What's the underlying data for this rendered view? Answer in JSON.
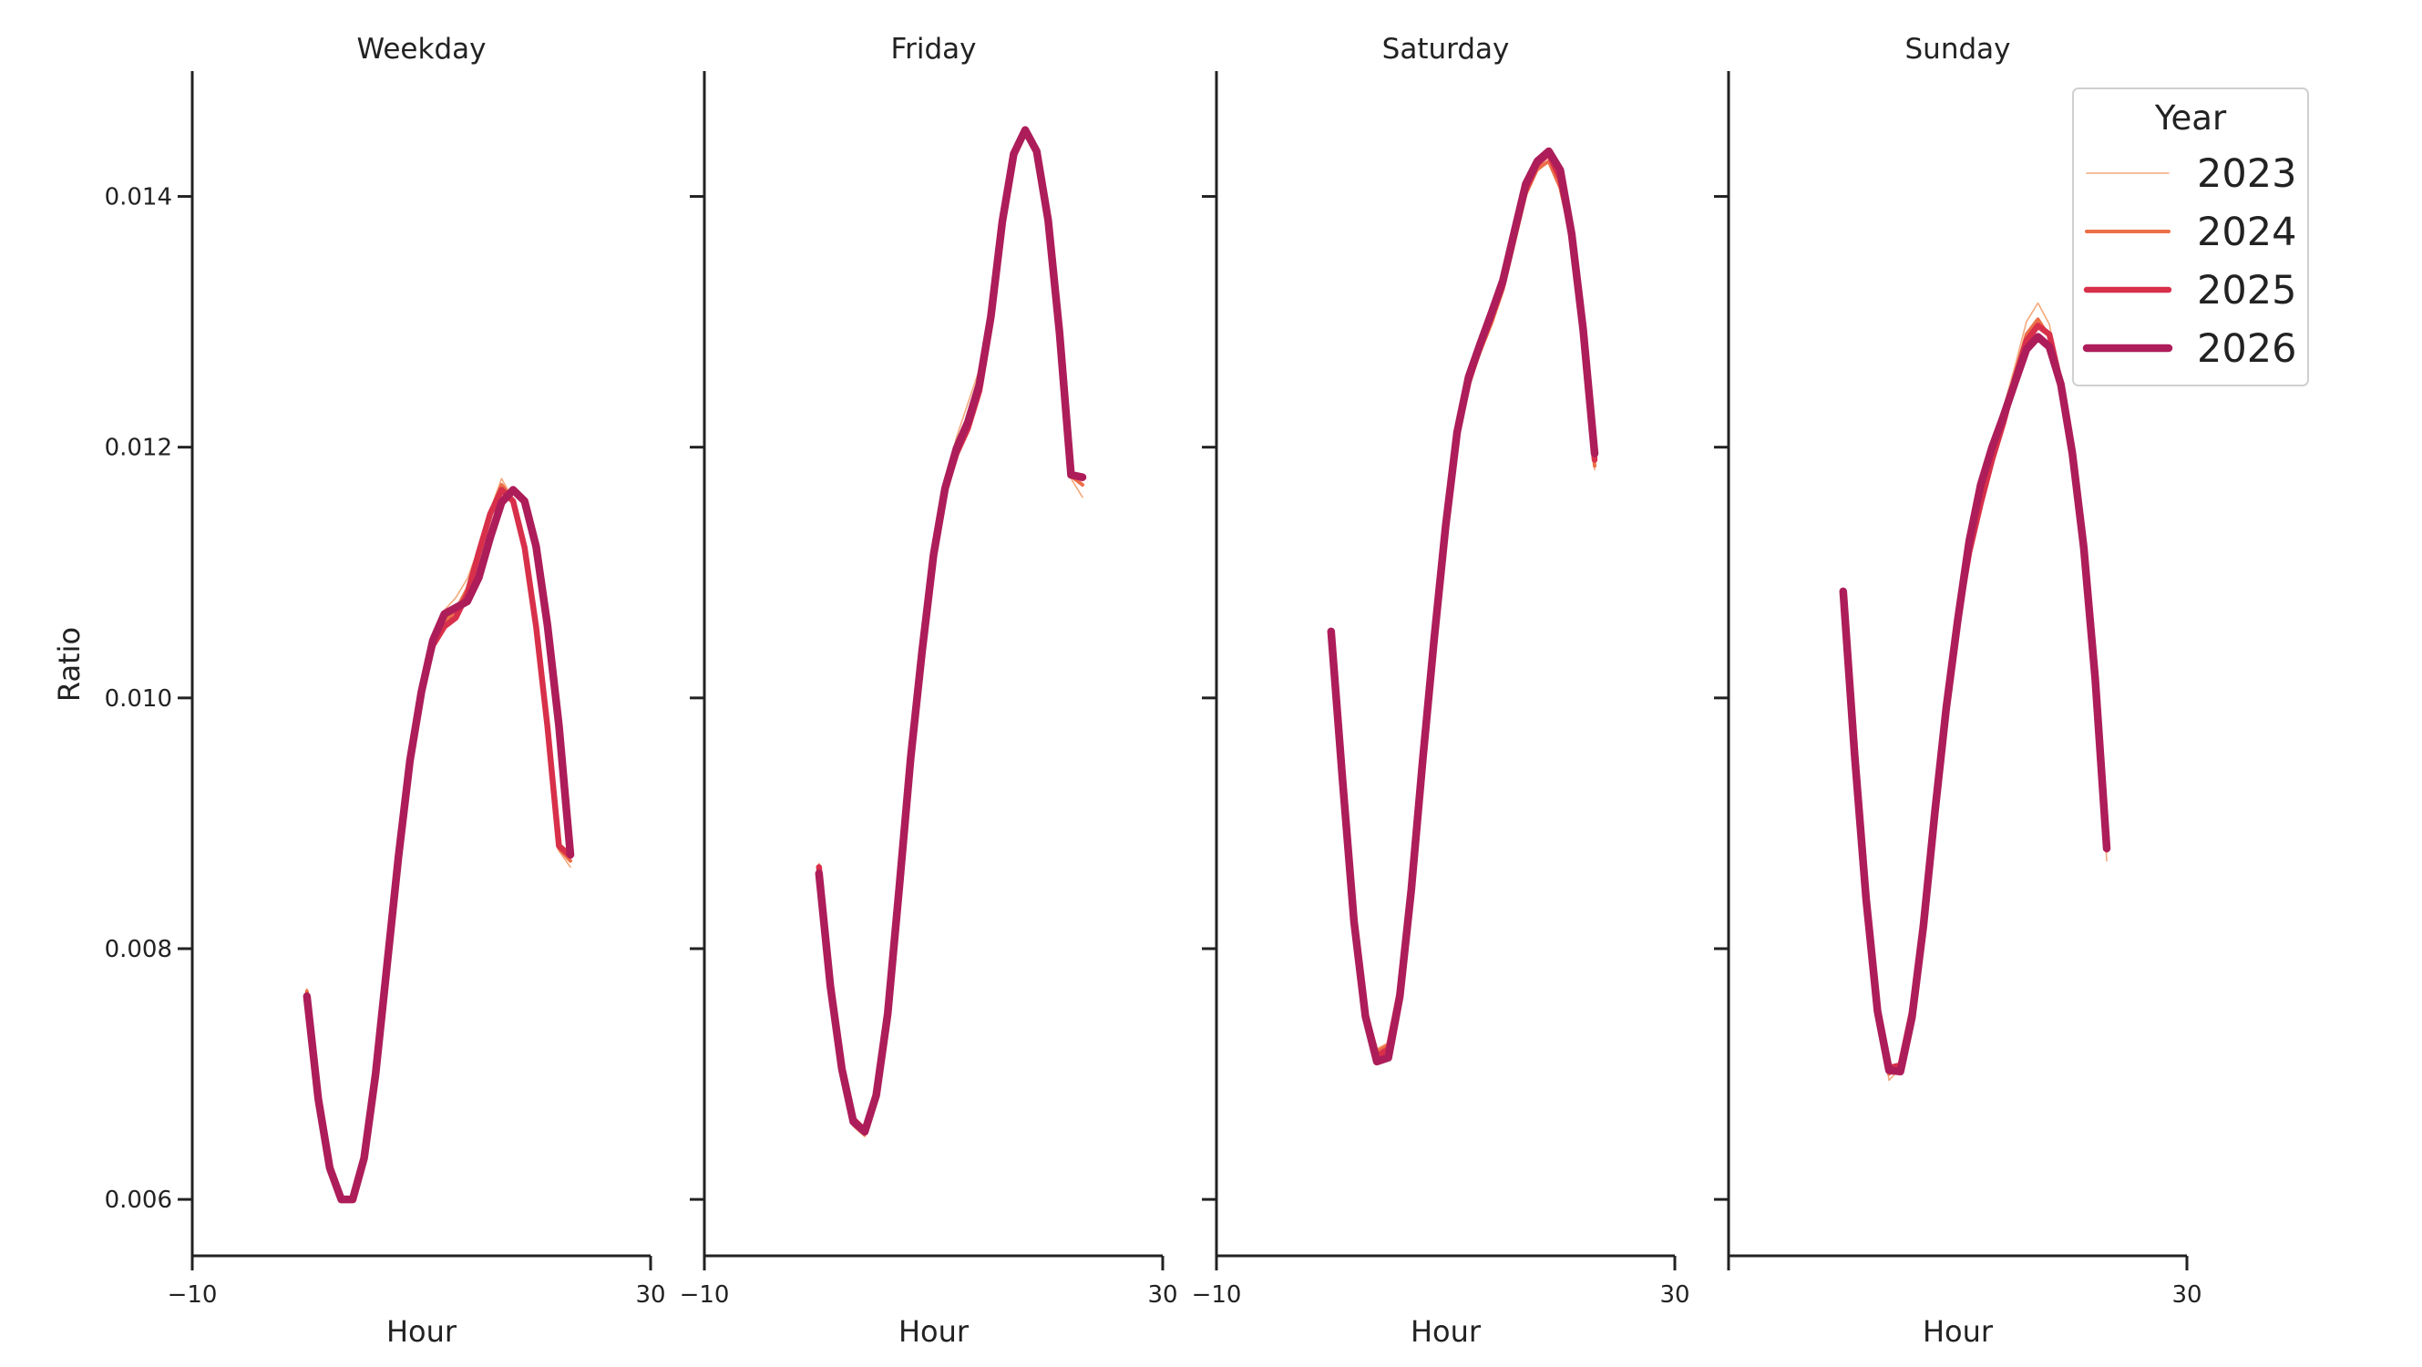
{
  "chart_data": {
    "type": "line",
    "ylabel": "Ratio",
    "ylim": [
      0.00555,
      0.015
    ],
    "y_ticks": [
      0.006,
      0.008,
      0.01,
      0.012,
      0.014
    ],
    "y_tick_labels": [
      "0.006",
      "0.008",
      "0.010",
      "0.012",
      "0.014"
    ],
    "legend": {
      "title": "Year",
      "position": "top-right"
    },
    "colors": {
      "2023": "#f3a97c",
      "2024": "#ec6f48",
      "2025": "#d8304a",
      "2026": "#ad1d5a"
    },
    "series_names": [
      "2023",
      "2024",
      "2025",
      "2026"
    ],
    "panels": [
      {
        "title": "Weekday",
        "xlabel": "Hour",
        "xlim": [
          -10,
          30
        ],
        "x_ticks": [
          -10,
          30
        ],
        "x_tick_labels": [
          "−10",
          "30"
        ],
        "x": [
          0,
          1,
          2,
          3,
          4,
          5,
          6,
          7,
          8,
          9,
          10,
          11,
          12,
          13,
          14,
          15,
          16,
          17,
          18,
          19,
          20,
          21,
          22,
          23
        ],
        "series": [
          {
            "name": "2023",
            "values": [
              0.00768,
              0.00678,
              0.00622,
              0.00598,
              0.00598,
              0.00635,
              0.007,
              0.00788,
              0.00875,
              0.0095,
              0.01005,
              0.01045,
              0.0107,
              0.0108,
              0.01095,
              0.0112,
              0.0115,
              0.01175,
              0.01158,
              0.01118,
              0.01055,
              0.00975,
              0.00878,
              0.00865
            ]
          },
          {
            "name": "2024",
            "values": [
              0.00766,
              0.00679,
              0.00623,
              0.00599,
              0.00599,
              0.00634,
              0.007,
              0.00787,
              0.00874,
              0.0095,
              0.01004,
              0.01043,
              0.0106,
              0.0107,
              0.01087,
              0.01118,
              0.01148,
              0.0117,
              0.01158,
              0.0112,
              0.01057,
              0.00976,
              0.0088,
              0.0087
            ]
          },
          {
            "name": "2025",
            "values": [
              0.00763,
              0.0068,
              0.00624,
              0.006,
              0.006,
              0.00634,
              0.007,
              0.00787,
              0.00874,
              0.0095,
              0.01005,
              0.01042,
              0.01057,
              0.01064,
              0.01083,
              0.01116,
              0.01147,
              0.01166,
              0.01157,
              0.0112,
              0.01057,
              0.00977,
              0.00882,
              0.00874
            ]
          },
          {
            "name": "2026",
            "values": [
              0.00762,
              0.0068,
              0.00625,
              0.006,
              0.006,
              0.00633,
              0.007,
              0.00787,
              0.00874,
              0.0095,
              0.01005,
              0.01046,
              0.01067,
              0.01072,
              0.01077,
              0.01096,
              0.01128,
              0.01156,
              0.01166,
              0.01157,
              0.01121,
              0.01058,
              0.00978,
              0.00875
            ]
          }
        ]
      },
      {
        "title": "Friday",
        "xlabel": "Hour",
        "xlim": [
          -10,
          30
        ],
        "x_ticks": [
          -10,
          30
        ],
        "x_tick_labels": [
          "−10",
          "30"
        ],
        "x": [
          0,
          1,
          2,
          3,
          4,
          5,
          6,
          7,
          8,
          9,
          10,
          11,
          12,
          13,
          14,
          15,
          16,
          17,
          18,
          19,
          20,
          21,
          22,
          23
        ],
        "series": [
          {
            "name": "2023",
            "values": [
              0.00868,
              0.0077,
              0.007,
              0.00658,
              0.0065,
              0.00682,
              0.00748,
              0.00848,
              0.00952,
              0.01038,
              0.01115,
              0.0117,
              0.01208,
              0.01235,
              0.01262,
              0.0131,
              0.01378,
              0.0143,
              0.01452,
              0.01435,
              0.01378,
              0.01288,
              0.01175,
              0.0116
            ]
          },
          {
            "name": "2024",
            "values": [
              0.00866,
              0.0077,
              0.00702,
              0.0066,
              0.00652,
              0.00683,
              0.00748,
              0.00848,
              0.00952,
              0.01037,
              0.01114,
              0.01168,
              0.012,
              0.01222,
              0.01252,
              0.01304,
              0.01378,
              0.01431,
              0.01452,
              0.01435,
              0.0138,
              0.0129,
              0.01177,
              0.0117
            ]
          },
          {
            "name": "2025",
            "values": [
              0.00865,
              0.0077,
              0.00703,
              0.00664,
              0.00655,
              0.00683,
              0.00748,
              0.00848,
              0.00952,
              0.01037,
              0.01114,
              0.01165,
              0.01195,
              0.01215,
              0.01245,
              0.013,
              0.01377,
              0.01432,
              0.01453,
              0.01436,
              0.01381,
              0.01291,
              0.01178,
              0.01176
            ]
          },
          {
            "name": "2026",
            "values": [
              0.0086,
              0.0077,
              0.00704,
              0.00662,
              0.00654,
              0.00683,
              0.00748,
              0.00848,
              0.00952,
              0.01037,
              0.01114,
              0.01167,
              0.01199,
              0.0122,
              0.0125,
              0.01304,
              0.0138,
              0.01434,
              0.01453,
              0.01436,
              0.01381,
              0.01291,
              0.01178,
              0.01176
            ]
          }
        ]
      },
      {
        "title": "Saturday",
        "xlabel": "Hour",
        "xlim": [
          -10,
          30
        ],
        "x_ticks": [
          -10,
          30
        ],
        "x_tick_labels": [
          "−10",
          "30"
        ],
        "x": [
          0,
          1,
          2,
          3,
          4,
          5,
          6,
          7,
          8,
          9,
          10,
          11,
          12,
          13,
          14,
          15,
          16,
          17,
          18,
          19,
          20,
          21,
          22,
          23
        ],
        "series": [
          {
            "name": "2023",
            "values": [
              0.0105,
              0.00935,
              0.00822,
              0.00752,
              0.0072,
              0.00725,
              0.0077,
              0.0085,
              0.00952,
              0.01048,
              0.01138,
              0.01208,
              0.0125,
              0.01275,
              0.01298,
              0.01325,
              0.01362,
              0.014,
              0.0142,
              0.01428,
              0.01405,
              0.01365,
              0.0129,
              0.01182
            ]
          },
          {
            "name": "2024",
            "values": [
              0.01052,
              0.00935,
              0.00822,
              0.0075,
              0.00718,
              0.00723,
              0.00768,
              0.0085,
              0.00952,
              0.01048,
              0.01138,
              0.01209,
              0.01251,
              0.01276,
              0.01299,
              0.01326,
              0.01364,
              0.01402,
              0.01422,
              0.01428,
              0.01407,
              0.01366,
              0.01292,
              0.01185
            ]
          },
          {
            "name": "2025",
            "values": [
              0.01053,
              0.00935,
              0.00822,
              0.00748,
              0.00714,
              0.0072,
              0.00766,
              0.0085,
              0.00952,
              0.01048,
              0.01138,
              0.0121,
              0.01252,
              0.0128,
              0.01304,
              0.0133,
              0.0137,
              0.01406,
              0.01426,
              0.01434,
              0.01414,
              0.0137,
              0.01294,
              0.0119
            ]
          },
          {
            "name": "2026",
            "values": [
              0.01053,
              0.00935,
              0.00822,
              0.00746,
              0.0071,
              0.00713,
              0.00762,
              0.00847,
              0.0095,
              0.01047,
              0.01137,
              0.01212,
              0.01256,
              0.01282,
              0.01307,
              0.01333,
              0.01372,
              0.0141,
              0.01428,
              0.01436,
              0.01421,
              0.0137,
              0.01294,
              0.01195
            ]
          }
        ]
      },
      {
        "title": "Sunday",
        "xlabel": "Hour",
        "xlim": [
          -10,
          30
        ],
        "x_ticks": [
          -10,
          30
        ],
        "x_tick_labels": [
          "",
          "30"
        ],
        "x": [
          0,
          1,
          2,
          3,
          4,
          5,
          6,
          7,
          8,
          9,
          10,
          11,
          12,
          13,
          14,
          15,
          16,
          17,
          18,
          19,
          20,
          21,
          22,
          23
        ],
        "series": [
          {
            "name": "2023",
            "values": [
              0.01085,
              0.00955,
              0.0084,
              0.0075,
              0.00695,
              0.00705,
              0.0075,
              0.0082,
              0.0091,
              0.00992,
              0.01062,
              0.0112,
              0.01165,
              0.012,
              0.01232,
              0.01265,
              0.013,
              0.01315,
              0.01298,
              0.0125,
              0.01195,
              0.0112,
              0.01015,
              0.0087
            ]
          },
          {
            "name": "2024",
            "values": [
              0.01084,
              0.00955,
              0.0084,
              0.0075,
              0.007,
              0.00706,
              0.0075,
              0.0082,
              0.0091,
              0.00992,
              0.01062,
              0.01118,
              0.0116,
              0.01195,
              0.01225,
              0.01258,
              0.0129,
              0.01302,
              0.01288,
              0.01246,
              0.01192,
              0.0112,
              0.01015,
              0.00878
            ]
          },
          {
            "name": "2025",
            "values": [
              0.01083,
              0.00955,
              0.0084,
              0.0075,
              0.00705,
              0.00707,
              0.0075,
              0.0082,
              0.0091,
              0.00992,
              0.01062,
              0.01116,
              0.01155,
              0.0119,
              0.0122,
              0.01255,
              0.01285,
              0.01297,
              0.0129,
              0.0125,
              0.01194,
              0.0112,
              0.01015,
              0.00882
            ]
          },
          {
            "name": "2026",
            "values": [
              0.01085,
              0.00955,
              0.0084,
              0.0075,
              0.00703,
              0.00702,
              0.00745,
              0.00818,
              0.00908,
              0.00992,
              0.01062,
              0.01125,
              0.0117,
              0.012,
              0.01225,
              0.01252,
              0.01278,
              0.01288,
              0.0128,
              0.0125,
              0.01195,
              0.0112,
              0.01015,
              0.0088
            ]
          }
        ]
      }
    ]
  }
}
